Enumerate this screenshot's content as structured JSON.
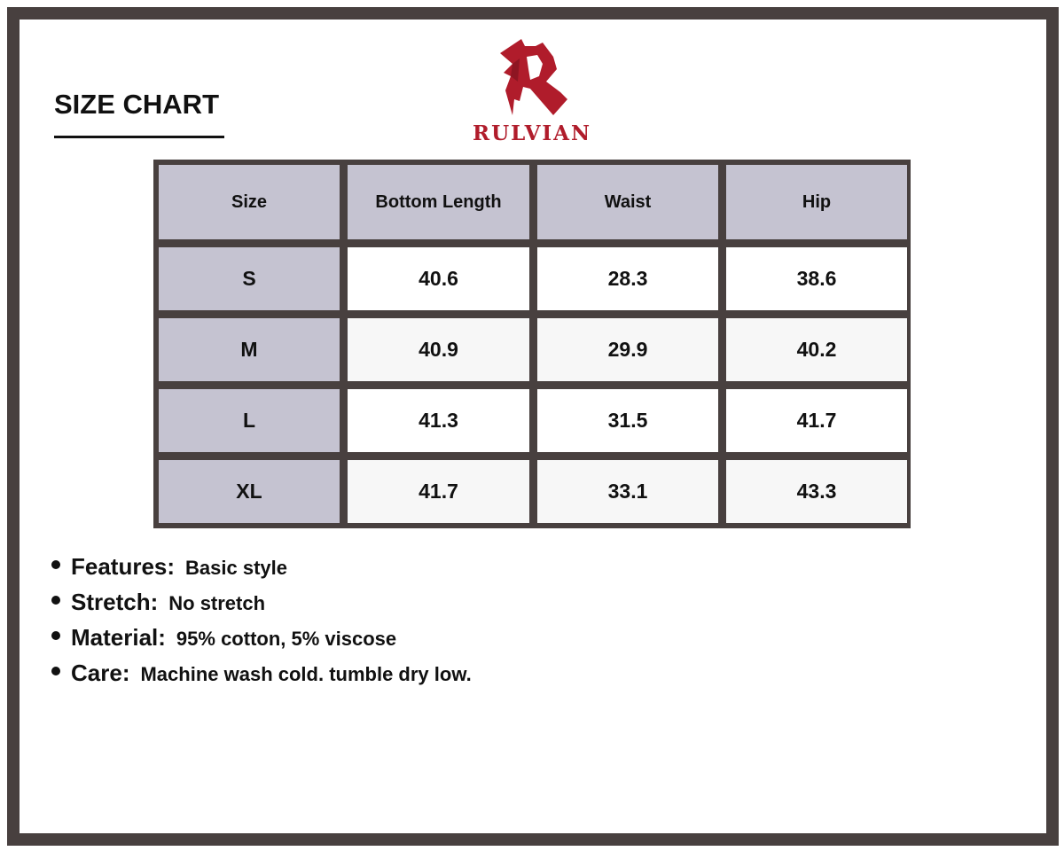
{
  "title": "SIZE CHART",
  "brand": {
    "name": "RULVIAN",
    "color": "#b01c2b",
    "logo_icon": "gothic-r-logo"
  },
  "table": {
    "headers": [
      "Size",
      "Bottom Length",
      "Waist",
      "Hip"
    ],
    "rows": [
      [
        "S",
        "40.6",
        "28.3",
        "38.6"
      ],
      [
        "M",
        "40.9",
        "29.9",
        "40.2"
      ],
      [
        "L",
        "41.3",
        "31.5",
        "41.7"
      ],
      [
        "XL",
        "41.7",
        "33.1",
        "43.3"
      ]
    ]
  },
  "notes": [
    {
      "label": "Features:",
      "value": "Basic style"
    },
    {
      "label": "Stretch:",
      "value": "No stretch"
    },
    {
      "label": "Material:",
      "value": "95% cotton, 5% viscose"
    },
    {
      "label": "Care:",
      "value": "Machine wash cold. tumble dry low."
    }
  ],
  "colors": {
    "frame": "#48403f",
    "header_fill": "#c5c3d1",
    "accent": "#b01c2b"
  }
}
